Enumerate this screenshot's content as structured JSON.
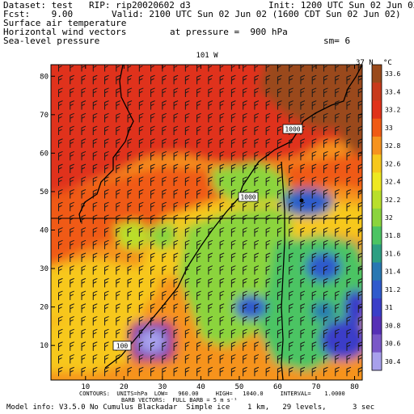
{
  "header": {
    "dataset": "Dataset: test   RIP: rip20020602 d3",
    "init": "Init: 1200 UTC Sun 02 Jun 02",
    "fcst": "Fcst:    9.00",
    "valid": "Valid: 2100 UTC Sun 02 Jun 02 (1600 CDT Sun 02 Jun 02)",
    "line3": "Surface air temperature",
    "line4": "Horizontal wind vectors",
    "pressure": "at pressure =  900 hPa",
    "line5": "Sea-level pressure",
    "sm": "sm= 6"
  },
  "map": {
    "top_label": "101 W",
    "right_label": "37 N",
    "x_ticks": [
      "10",
      "20",
      "30",
      "40",
      "50",
      "60",
      "70",
      "80"
    ],
    "y_ticks": [
      "10",
      "20",
      "30",
      "40",
      "50",
      "60",
      "70",
      "80"
    ],
    "isobar_labels": [
      "1000",
      "1000",
      "100"
    ]
  },
  "colorbar": {
    "unit": "°C",
    "labels": [
      "33.6",
      "33.4",
      "33.2",
      "33",
      "32.8",
      "32.6",
      "32.4",
      "32.2",
      "32",
      "31.8",
      "31.6",
      "31.4",
      "31.2",
      "31",
      "30.8",
      "30.6",
      "30.4"
    ],
    "colors": [
      "#9a4a1c",
      "#c83a1c",
      "#e0321a",
      "#f05a14",
      "#f6931e",
      "#f7c81c",
      "#eee820",
      "#b9df2b",
      "#8bd43d",
      "#4cc463",
      "#2d9f82",
      "#2878b2",
      "#2f5acc",
      "#3a3ec8",
      "#5630b6",
      "#7a58c8",
      "#a8a0ec"
    ]
  },
  "footer": {
    "line1": "CONTOURS:  UNITS=hPa  LOW=   960.00     HIGH=   1040.0     INTERVAL=    1.0000",
    "line2": "BARB VECTORS:  FULL BARB = 5 m s⁻¹",
    "line3": "Model info: V3.5.0 No Cumulus Blackadar  Simple ice    1 km,   29 levels,      3 sec"
  }
}
